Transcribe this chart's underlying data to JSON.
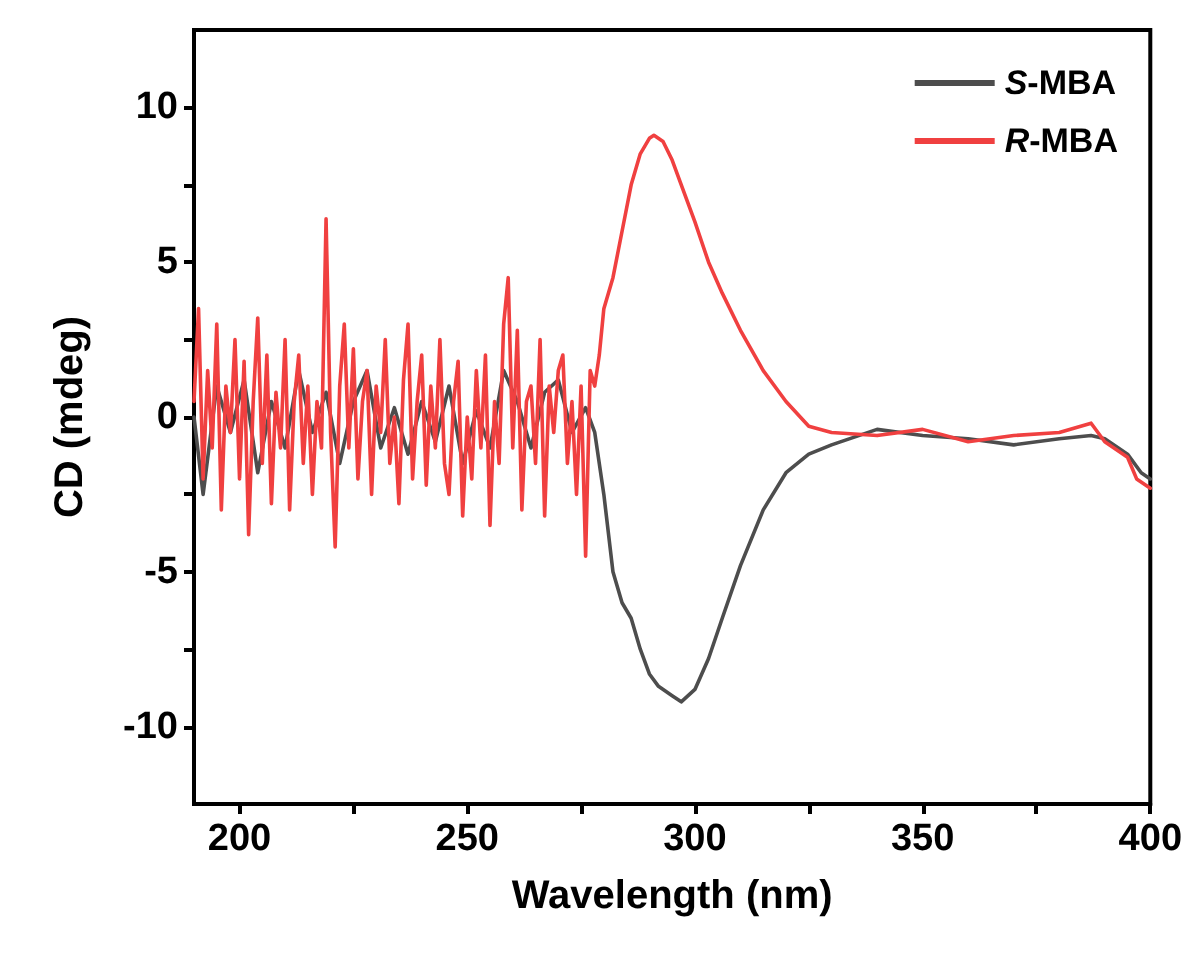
{
  "chart_data": {
    "type": "line",
    "xlabel": "Wavelength (nm)",
    "ylabel": "CD (mdeg)",
    "xlim": [
      190,
      400
    ],
    "ylim": [
      -12.5,
      12.5
    ],
    "xticks": [
      200,
      {
        "value": 225,
        "label": null
      },
      250,
      {
        "value": 275,
        "label": null
      },
      300,
      {
        "value": 325,
        "label": null
      },
      350,
      {
        "value": 375,
        "label": null
      },
      400
    ],
    "yticks": [
      -10,
      {
        "value": -7.5,
        "label": null
      },
      -5,
      {
        "value": -2.5,
        "label": null
      },
      0,
      {
        "value": 2.5,
        "label": null
      },
      5,
      {
        "value": 7.5,
        "label": null
      },
      10
    ],
    "grid": false,
    "legend": "top right",
    "marker": "none",
    "line_style": "solid",
    "series": [
      {
        "name": "S-MBA",
        "color": "#4d4d4d",
        "x": [
          190,
          192,
          195,
          198,
          201,
          204,
          207,
          210,
          213,
          216,
          219,
          222,
          225,
          228,
          231,
          234,
          237,
          240,
          243,
          246,
          249,
          252,
          255,
          258,
          261,
          264,
          267,
          270,
          273,
          276,
          278,
          280,
          282,
          284,
          286,
          288,
          290,
          292,
          295,
          297,
          300,
          303,
          306,
          310,
          315,
          320,
          325,
          330,
          340,
          350,
          360,
          370,
          380,
          387,
          390,
          395,
          398,
          400
        ],
        "values": [
          0,
          -2.5,
          1,
          -0.5,
          1.2,
          -1.8,
          0.5,
          -1,
          1.5,
          -0.5,
          0.8,
          -1.5,
          0.5,
          1.5,
          -1,
          0.3,
          -1.2,
          0.5,
          -0.8,
          1,
          -1.5,
          0.2,
          -1,
          1.5,
          0.5,
          -1,
          0.8,
          1.2,
          -0.5,
          0.3,
          -0.5,
          -2.5,
          -5,
          -6,
          -6.5,
          -7.5,
          -8.3,
          -8.7,
          -9,
          -9.2,
          -8.8,
          -7.8,
          -6.5,
          -4.8,
          -3,
          -1.8,
          -1.2,
          -0.9,
          -0.4,
          -0.6,
          -0.7,
          -0.9,
          -0.7,
          -0.6,
          -0.7,
          -1.2,
          -1.8,
          -2
        ]
      },
      {
        "name": "R-MBA",
        "color": "#f04040",
        "x": [
          190,
          191,
          192,
          193,
          194,
          195,
          196,
          197,
          198,
          199,
          200,
          201,
          202,
          203,
          204,
          205,
          206,
          207,
          208,
          209,
          210,
          211,
          212,
          213,
          214,
          215,
          216,
          217,
          218,
          219,
          220,
          221,
          222,
          223,
          224,
          225,
          226,
          227,
          228,
          229,
          230,
          231,
          232,
          233,
          234,
          235,
          236,
          237,
          238,
          239,
          240,
          241,
          242,
          243,
          244,
          245,
          246,
          247,
          248,
          249,
          250,
          251,
          252,
          253,
          254,
          255,
          256,
          257,
          258,
          259,
          260,
          261,
          262,
          263,
          264,
          265,
          266,
          267,
          268,
          269,
          270,
          271,
          272,
          273,
          274,
          275,
          276,
          277,
          278,
          279,
          280,
          282,
          284,
          286,
          288,
          290,
          291,
          293,
          295,
          297,
          300,
          303,
          306,
          310,
          315,
          320,
          325,
          330,
          340,
          350,
          360,
          370,
          380,
          387,
          390,
          395,
          397,
          400
        ],
        "values": [
          0.5,
          3.5,
          -2,
          1.5,
          -1,
          3,
          -3,
          1,
          -0.5,
          2.5,
          -2,
          1.8,
          -3.8,
          0.5,
          3.2,
          -1.5,
          2,
          -2.8,
          0.8,
          -1,
          2.5,
          -3,
          0.5,
          2,
          -1.5,
          1,
          -2.5,
          0.5,
          -1,
          6.4,
          -0.5,
          -4.2,
          1,
          3,
          -1,
          2.2,
          -2,
          0.5,
          1.5,
          -2.5,
          1,
          -0.5,
          2.5,
          -1.5,
          0,
          -2.8,
          1.2,
          3,
          -2,
          0.5,
          2,
          -2.2,
          1,
          -1,
          2.5,
          -1.5,
          -2.5,
          0.5,
          1.8,
          -3.2,
          0,
          -2,
          1.5,
          -1,
          2,
          -3.5,
          0.5,
          -1.5,
          3,
          4.5,
          -1,
          2.8,
          -3,
          0.5,
          1,
          -1.5,
          2.5,
          -3.2,
          1,
          -0.5,
          1.5,
          2,
          -1.5,
          0.5,
          -2.5,
          1,
          -4.5,
          1.5,
          1,
          2,
          3.5,
          4.5,
          6,
          7.5,
          8.5,
          9,
          9.1,
          8.9,
          8.3,
          7.5,
          6.3,
          5,
          4,
          2.8,
          1.5,
          0.5,
          -0.3,
          -0.5,
          -0.6,
          -0.4,
          -0.8,
          -0.6,
          -0.5,
          -0.2,
          -0.8,
          -1.3,
          -2,
          -2.3
        ]
      }
    ]
  }
}
